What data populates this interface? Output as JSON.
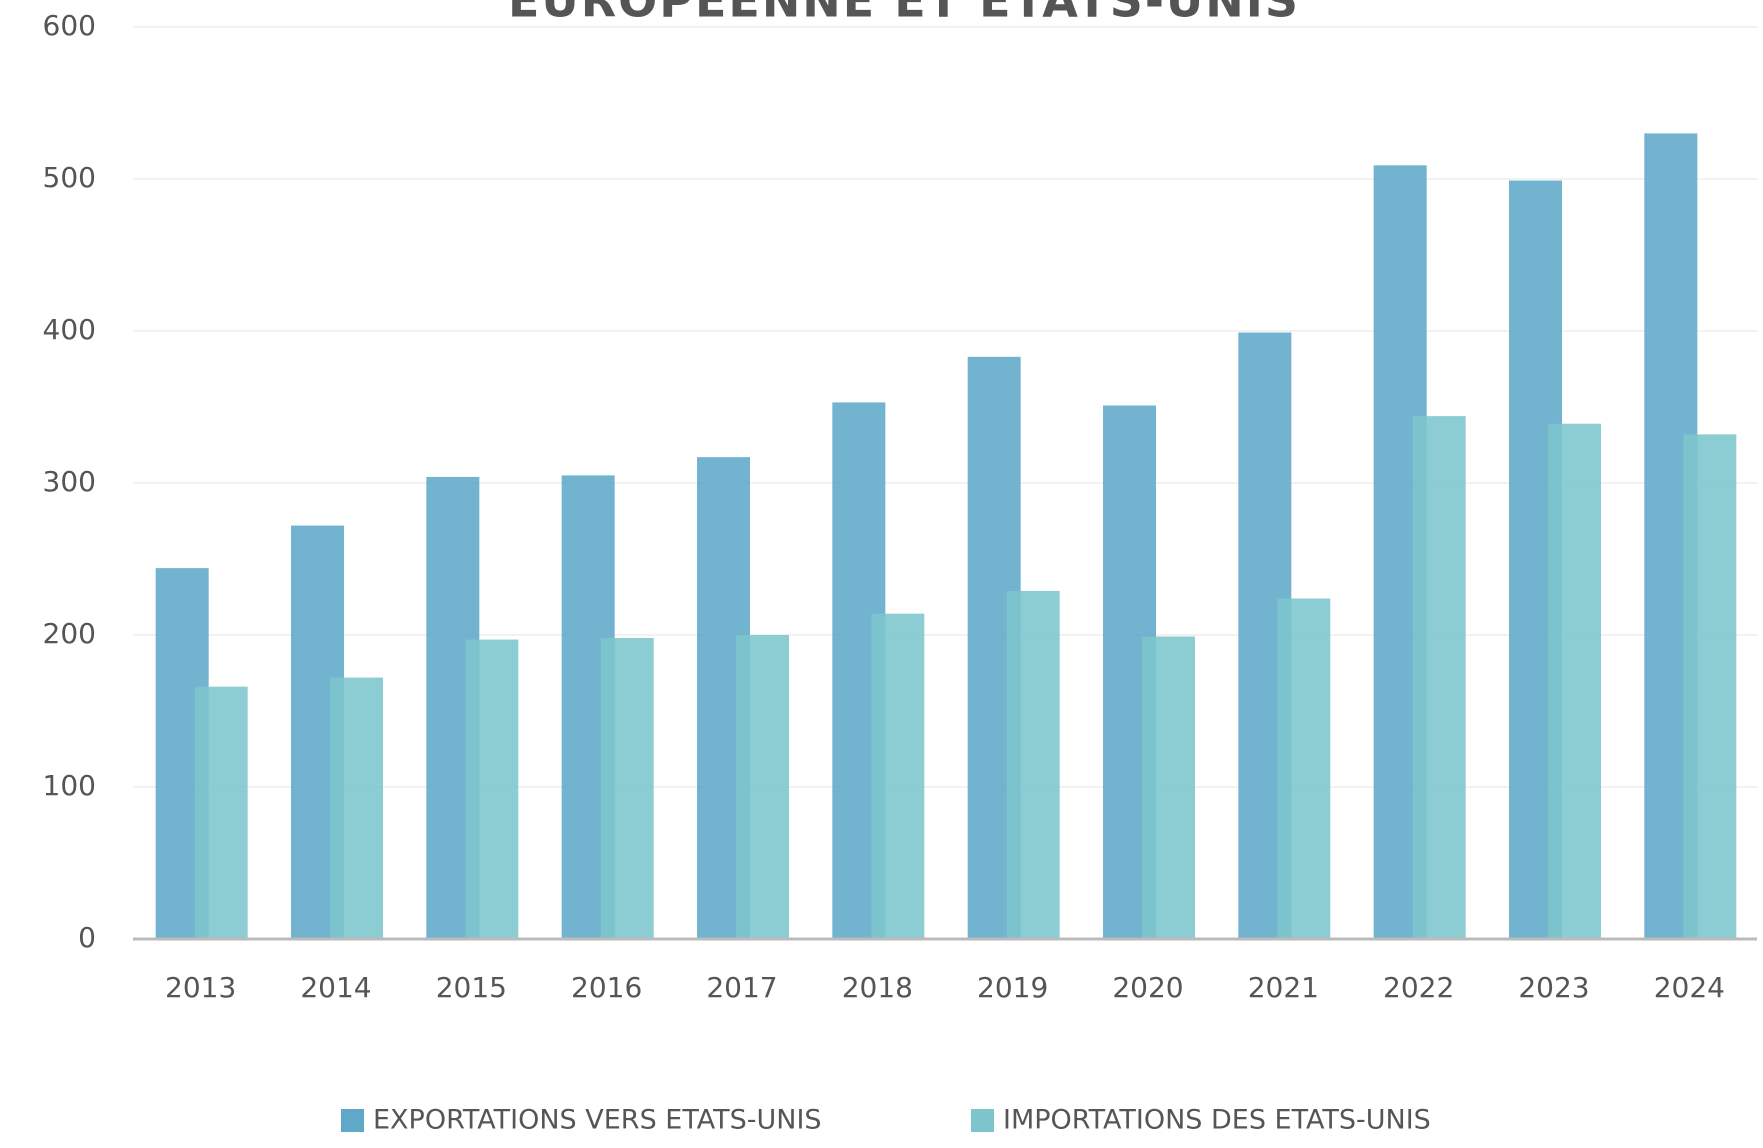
{
  "chart_data": {
    "type": "bar",
    "title": "EUROPEENNE ET ETATS-UNIS",
    "categories": [
      "2013",
      "2014",
      "2015",
      "2016",
      "2017",
      "2018",
      "2019",
      "2020",
      "2021",
      "2022",
      "2023",
      "2024"
    ],
    "series": [
      {
        "name": "EXPORTATIONS VERS ETATS-UNIS",
        "color": "#5fa8c8",
        "values": [
          244,
          272,
          304,
          305,
          317,
          353,
          383,
          351,
          399,
          509,
          499,
          530
        ]
      },
      {
        "name": "IMPORTATIONS DES ETATS-UNIS",
        "color": "#7cc5cd",
        "values": [
          166,
          172,
          197,
          198,
          200,
          214,
          229,
          199,
          224,
          344,
          339,
          332
        ]
      }
    ],
    "ylim": [
      0,
      600
    ],
    "yticks": [
      0,
      100,
      200,
      300,
      400,
      500,
      600
    ],
    "grid": true,
    "legend": "bottom"
  }
}
